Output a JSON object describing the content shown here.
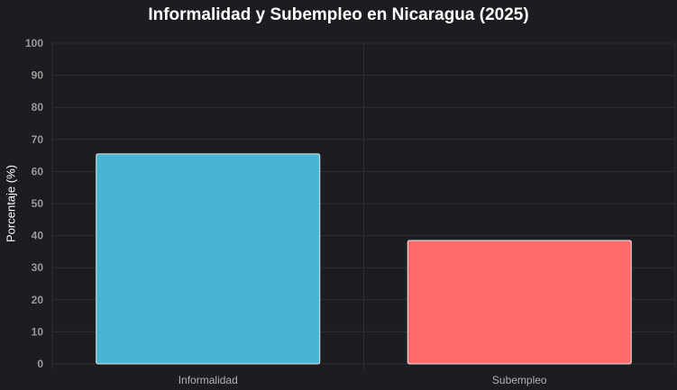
{
  "chart_data": {
    "type": "bar",
    "title": "Informalidad y Subempleo en Nicaragua (2025)",
    "xlabel": "",
    "ylabel": "Porcentaje (%)",
    "categories": [
      "Informalidad",
      "Subempleo"
    ],
    "values": [
      65.5,
      38.5
    ],
    "colors": [
      "#48b6d2",
      "#ff6b6b"
    ],
    "ylim": [
      0,
      100
    ],
    "yticks": [
      0,
      10,
      20,
      30,
      40,
      50,
      60,
      70,
      80,
      90,
      100
    ],
    "grid": true,
    "legend": "none"
  }
}
